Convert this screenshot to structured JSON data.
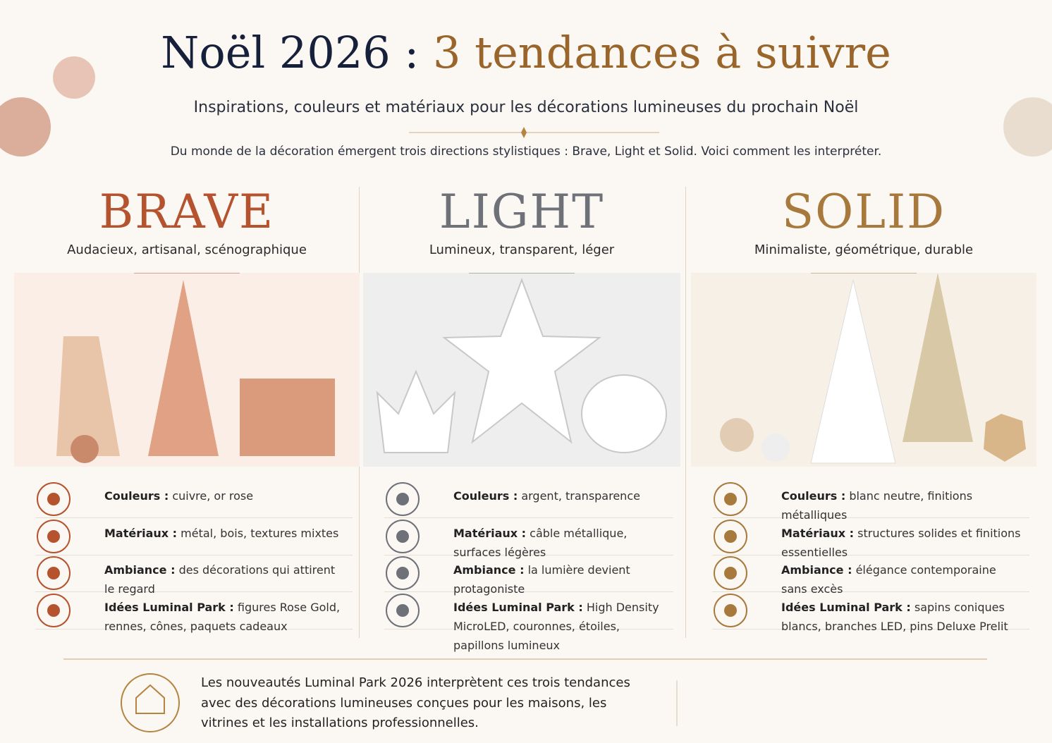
{
  "header": {
    "title_main": "Noël 2026 :",
    "title_accent": "3 tendances à suivre",
    "subtitle": "Inspirations, couleurs et matériaux pour les décorations lumineuses du prochain Noël",
    "intro": "Du monde de la décoration émergent trois directions stylistiques : Brave, Light et Solid. Voici comment les interpréter."
  },
  "trends": [
    {
      "name": "BRAVE",
      "tagline": "Audacieux, artisanal, scénographique",
      "items": [
        {
          "label": "Couleurs :",
          "text": "cuivre, or rose"
        },
        {
          "label": "Matériaux :",
          "text": "métal, bois, textures mixtes"
        },
        {
          "label": "Ambiance :",
          "text": "des décorations qui attirent le regard"
        },
        {
          "label": "Idées Luminal Park :",
          "text": "figures Rose Gold, rennes, cônes, paquets cadeaux"
        }
      ]
    },
    {
      "name": "LIGHT",
      "tagline": "Lumineux, transparent, léger",
      "items": [
        {
          "label": "Couleurs :",
          "text": "argent, transparence"
        },
        {
          "label": "Matériaux :",
          "text": "câble métallique, surfaces légères"
        },
        {
          "label": "Ambiance :",
          "text": "la lumière devient protagoniste"
        },
        {
          "label": "Idées Luminal Park :",
          "text": "High Density MicroLED, couronnes, étoiles, papillons lumineux"
        }
      ]
    },
    {
      "name": "SOLID",
      "tagline": "Minimaliste, géométrique, durable",
      "items": [
        {
          "label": "Couleurs :",
          "text": "blanc neutre, finitions métalliques"
        },
        {
          "label": "Matériaux :",
          "text": "structures solides et finitions essentielles"
        },
        {
          "label": "Ambiance :",
          "text": "élégance contemporaine sans excès"
        },
        {
          "label": "Idées Luminal Park :",
          "text": "sapins coniques blancs, branches LED, pins Deluxe Prelit"
        }
      ]
    }
  ],
  "footer": {
    "text": "Les nouveautés Luminal Park 2026 interprètent ces trois tendances avec des décorations lumineuses conçues pour les maisons, les vitrines et les installations professionnelles."
  }
}
